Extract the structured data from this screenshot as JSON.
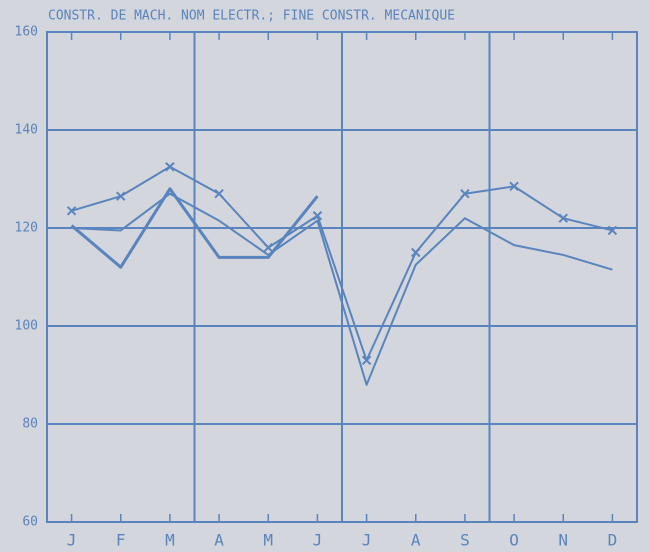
{
  "chart_data": {
    "type": "line",
    "title": "CONSTR. DE MACH. NOM ELECTR.; FINE CONSTR. MECANIQUE",
    "categories": [
      "J",
      "F",
      "M",
      "A",
      "M",
      "J",
      "J",
      "A",
      "S",
      "O",
      "N",
      "D"
    ],
    "series": [
      {
        "color": "#5a84bd",
        "marker": "x",
        "values": [
          123.5,
          126.5,
          132.5,
          127,
          116,
          122.5,
          93,
          115,
          127,
          128.5,
          122,
          119.5
        ]
      },
      {
        "color": "#5a84bd",
        "marker": "none",
        "values": [
          120.5,
          112,
          128,
          114,
          114,
          126.5,
          null,
          null,
          null,
          null,
          null,
          null
        ]
      },
      {
        "color": "#5a84bd",
        "marker": "none",
        "values": [
          120,
          119.5,
          127,
          121.5,
          114.5,
          121.5,
          88,
          112.5,
          122,
          116.5,
          114.5,
          111.5
        ]
      }
    ],
    "ylim": [
      60,
      160
    ],
    "yticks": [
      60,
      80,
      100,
      120,
      140,
      160
    ],
    "grid": true
  }
}
